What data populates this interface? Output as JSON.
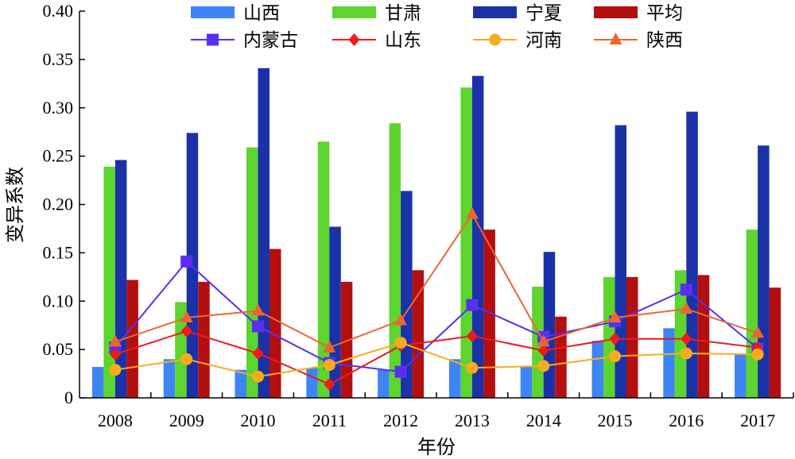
{
  "chart_data": {
    "type": "bar",
    "xlabel": "年份",
    "ylabel": "变异系数",
    "ylim": [
      0,
      0.4
    ],
    "yticks": [
      "0",
      "0.05",
      "0.10",
      "0.15",
      "0.20",
      "0.25",
      "0.30",
      "0.35",
      "0.40"
    ],
    "categories": [
      "2008",
      "2009",
      "2010",
      "2011",
      "2012",
      "2013",
      "2014",
      "2015",
      "2016",
      "2017"
    ],
    "grid": false,
    "legend_position": "top",
    "bar_series": [
      {
        "name": "山西",
        "color": "#3d85f5",
        "values": [
          0.032,
          0.04,
          0.029,
          0.031,
          0.029,
          0.04,
          0.033,
          0.059,
          0.072,
          0.045
        ]
      },
      {
        "name": "甘肃",
        "color": "#5ed42e",
        "values": [
          0.239,
          0.099,
          0.259,
          0.265,
          0.284,
          0.321,
          0.115,
          0.125,
          0.132,
          0.174
        ]
      },
      {
        "name": "宁夏",
        "color": "#1b31a8",
        "values": [
          0.246,
          0.274,
          0.341,
          0.177,
          0.214,
          0.333,
          0.151,
          0.282,
          0.296,
          0.261
        ]
      },
      {
        "name": "平均",
        "color": "#b30f0f",
        "values": [
          0.122,
          0.12,
          0.154,
          0.12,
          0.132,
          0.174,
          0.084,
          0.125,
          0.127,
          0.114
        ]
      }
    ],
    "line_series": [
      {
        "name": "内蒙古",
        "color": "#5a2ef2",
        "marker": "square",
        "values": [
          0.052,
          0.141,
          0.074,
          0.036,
          0.027,
          0.096,
          0.063,
          0.079,
          0.112,
          0.051
        ]
      },
      {
        "name": "山东",
        "color": "#f0191c",
        "marker": "diamond",
        "values": [
          0.045,
          0.069,
          0.046,
          0.014,
          0.054,
          0.064,
          0.049,
          0.061,
          0.061,
          0.052
        ]
      },
      {
        "name": "河南",
        "color": "#f5ad1d",
        "marker": "circle",
        "values": [
          0.029,
          0.04,
          0.022,
          0.034,
          0.057,
          0.031,
          0.033,
          0.043,
          0.046,
          0.045
        ]
      },
      {
        "name": "陕西",
        "color": "#ec6630",
        "marker": "triangle",
        "values": [
          0.058,
          0.083,
          0.09,
          0.052,
          0.08,
          0.19,
          0.058,
          0.083,
          0.092,
          0.067
        ]
      }
    ]
  }
}
